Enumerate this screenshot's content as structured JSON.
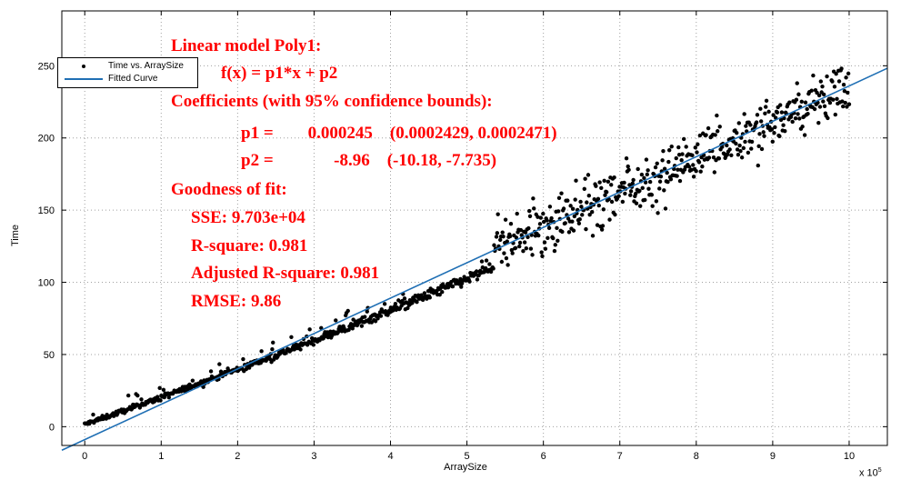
{
  "colors": {
    "points": "#000000",
    "fit_line": "#1f6fb4",
    "annotation": "#ff0000",
    "grid": "#a0a0a0"
  },
  "chart_data": {
    "type": "scatter",
    "title": "",
    "xlabel": "ArraySize",
    "ylabel": "Time",
    "x_scale_label": "x 10",
    "x_scale_exponent": "5",
    "xlim": [
      -0.3,
      10.5
    ],
    "ylim": [
      -13,
      288
    ],
    "grid": true,
    "x_ticks": [
      0,
      1,
      2,
      3,
      4,
      5,
      6,
      7,
      8,
      9,
      10
    ],
    "y_ticks": [
      0,
      50,
      100,
      150,
      200,
      250
    ],
    "legend": {
      "position": "top-left",
      "entries": [
        {
          "label": "Time vs. ArraySize",
          "marker": "dot"
        },
        {
          "label": "Fitted Curve",
          "marker": "line"
        }
      ]
    },
    "series": [
      {
        "name": "Time vs. ArraySize",
        "type": "scatter",
        "x_units": "x 10^5",
        "n_points": 1000,
        "description": "near-linear, tight below x=5.3, spread about ±20 above"
      },
      {
        "name": "Fitted Curve",
        "type": "line",
        "p1": 0.000245,
        "p2": -8.96,
        "x": [
          -0.3,
          10.5
        ],
        "y": [
          -16.31,
          248.29
        ]
      }
    ],
    "annotations": [
      "Linear model Poly1:",
      "f(x) = p1*x + p2",
      "Coefficients (with 95% confidence bounds):",
      "p1 =        0.000245    (0.0002429, 0.0002471)",
      "p2 =              -8.96    (-10.18, -7.735)",
      "Goodness of fit:",
      "SSE: 9.703e+04",
      "R-square: 0.981",
      "Adjusted R-square: 0.981",
      "RMSE: 9.86"
    ]
  }
}
